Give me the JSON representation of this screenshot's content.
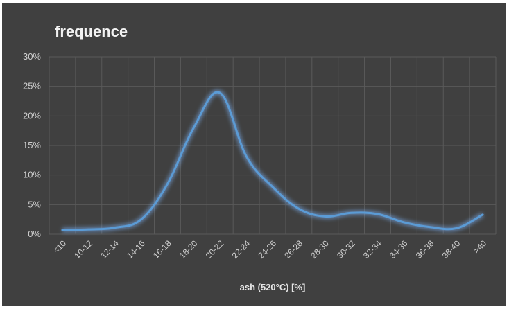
{
  "chart_data": {
    "type": "line",
    "title": "frequence",
    "xlabel": "ash (520°C) [%]",
    "ylabel": "",
    "categories": [
      "<10",
      "10-12",
      "12-14",
      "14-16",
      "16-18",
      "18-20",
      "20-22",
      "22-24",
      "24-26",
      "26-28",
      "28-30",
      "30-32",
      "32-34",
      "34-36",
      "36-38",
      "38-40",
      ">40"
    ],
    "x_values_continuous": true,
    "series": [
      {
        "values": [
          0.007,
          0.008,
          0.011,
          0.025,
          0.085,
          0.18,
          0.239,
          0.132,
          0.08,
          0.043,
          0.03,
          0.036,
          0.034,
          0.02,
          0.012,
          0.01,
          0.033
        ]
      }
    ],
    "ylim": [
      0,
      0.3
    ],
    "y_ticks": [
      "0%",
      "5%",
      "10%",
      "15%",
      "20%",
      "25%",
      "30%"
    ],
    "grid": true,
    "legend": "none",
    "colors": {
      "background": "#404040",
      "grid": "#5a5a5a",
      "line": "#5b9bd5",
      "glow": "#7fb8ff"
    }
  }
}
